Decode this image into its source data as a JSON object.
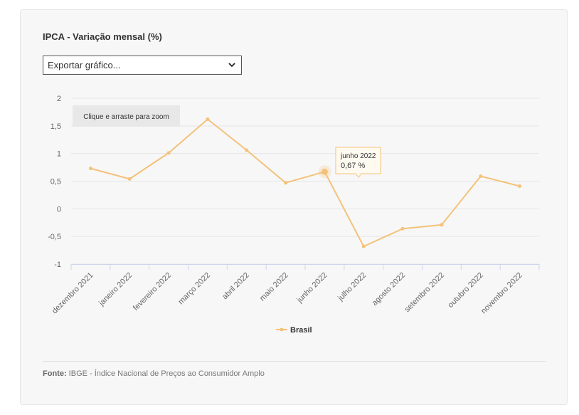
{
  "title": "IPCA - Variação mensal (%)",
  "export_select": {
    "value": "Exportar gráfico..."
  },
  "zoom_hint": "Clique e arraste para zoom",
  "tooltip": {
    "title": "junho 2022",
    "value": "0,67 %"
  },
  "source": {
    "label": "Fonte:",
    "text": "IBGE - Índice Nacional de Preços ao Consumidor Amplo"
  },
  "colors": {
    "series": "#f4c27a",
    "grid": "#e6e6e6",
    "axis": "#ccd6eb"
  },
  "chart_data": {
    "type": "line",
    "categories": [
      "dezembro 2021",
      "janeiro 2022",
      "fevereiro 2022",
      "março 2022",
      "abril 2022",
      "maio 2022",
      "junho 2022",
      "julho 2022",
      "agosto 2022",
      "setembro 2022",
      "outubro 2022",
      "novembro 2022"
    ],
    "series": [
      {
        "name": "Brasil",
        "values": [
          0.73,
          0.54,
          1.01,
          1.62,
          1.06,
          0.47,
          0.67,
          -0.68,
          -0.36,
          -0.29,
          0.59,
          0.41
        ]
      }
    ],
    "yticks": [
      "2",
      "1,5",
      "1",
      "0,5",
      "0",
      "-0,5",
      "-1"
    ],
    "ylim": [
      -1,
      2
    ],
    "grid": true,
    "legend": "bottom-center"
  }
}
